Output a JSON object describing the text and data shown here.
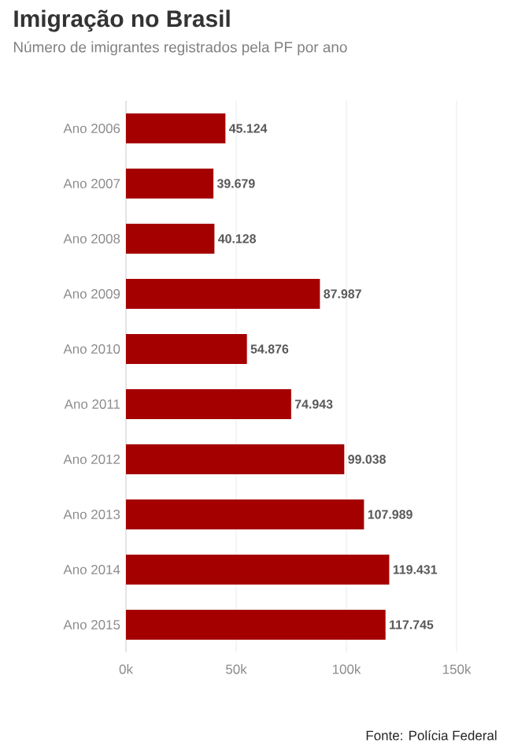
{
  "chart_data": {
    "type": "bar",
    "orientation": "horizontal",
    "title": "Imigração no Brasil",
    "subtitle": "Número de imigrantes registrados pela PF por ano",
    "categories": [
      "Ano 2006",
      "Ano 2007",
      "Ano 2008",
      "Ano 2009",
      "Ano 2010",
      "Ano 2011",
      "Ano 2012",
      "Ano 2013",
      "Ano 2014",
      "Ano 2015"
    ],
    "values": [
      45124,
      39679,
      40128,
      87987,
      54876,
      74943,
      99038,
      107989,
      119431,
      117745
    ],
    "value_labels": [
      "45.124",
      "39.679",
      "40.128",
      "87.987",
      "54.876",
      "74.943",
      "99.038",
      "107.989",
      "119.431",
      "117.745"
    ],
    "color": "#a50000",
    "xlim": [
      0,
      150000
    ],
    "xticks": [
      {
        "value": 0,
        "label": "0k"
      },
      {
        "value": 50000,
        "label": "50k"
      },
      {
        "value": 100000,
        "label": "100k"
      },
      {
        "value": 150000,
        "label": "150k"
      }
    ],
    "grid": "x",
    "annotations": [
      "Fonte: Polícia Federal"
    ]
  }
}
